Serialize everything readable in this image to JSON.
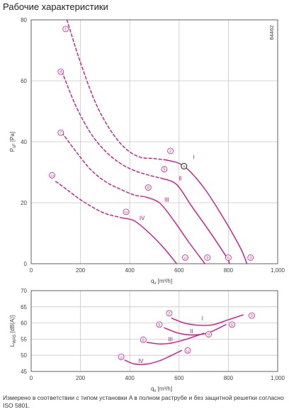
{
  "page_title": "Рабочие характеристики",
  "footnote": "Измерено в соответствии с типом установки A в полном раструбе и без защитной решетки согласно ISO 5801.",
  "colors": {
    "curve": "#d4148c",
    "grid": "#c8c8c8",
    "axis": "#555555",
    "text": "#444444"
  },
  "chart_data": [
    {
      "type": "line",
      "id": "pressure",
      "doc_code": "84462",
      "xlabel": "q",
      "xlabel_sub": "v",
      "xlabel_unit": "[m³/h]",
      "ylabel": "P",
      "ylabel_sub": "sF",
      "ylabel_unit": "[Pa]",
      "xlim": [
        0,
        1000
      ],
      "ylim": [
        0,
        80
      ],
      "x_ticks": [
        0,
        200,
        400,
        600,
        800,
        1000
      ],
      "x_tick_labels": [
        "0",
        "200",
        "400",
        "600",
        "800",
        "1,000"
      ],
      "y_ticks": [
        0,
        20,
        40,
        60,
        80
      ],
      "y_tick_labels": [
        "0",
        "20",
        "40",
        "60",
        "80"
      ],
      "grid": true,
      "series": [
        {
          "name": "I",
          "style": "dashed",
          "values": [
            [
              145,
              80
            ],
            [
              200,
              66
            ],
            [
              260,
              53
            ],
            [
              320,
              44
            ],
            [
              380,
              38
            ],
            [
              440,
              35
            ],
            [
              500,
              34.5
            ],
            [
              550,
              34
            ]
          ]
        },
        {
          "name": "I",
          "style": "solid",
          "values": [
            [
              550,
              34
            ],
            [
              620,
              32
            ],
            [
              700,
              25
            ],
            [
              780,
              15
            ],
            [
              850,
              5
            ],
            [
              875,
              0
            ]
          ]
        },
        {
          "name": "II",
          "style": "dashed",
          "values": [
            [
              125,
              63
            ],
            [
              180,
              52
            ],
            [
              240,
              43
            ],
            [
              300,
              37
            ],
            [
              360,
              33
            ],
            [
              420,
              30.5
            ],
            [
              480,
              29
            ],
            [
              530,
              28
            ]
          ]
        },
        {
          "name": "II",
          "style": "solid",
          "values": [
            [
              530,
              28
            ],
            [
              590,
              26
            ],
            [
              650,
              19
            ],
            [
              720,
              11
            ],
            [
              790,
              2.5
            ],
            [
              805,
              0
            ]
          ]
        },
        {
          "name": "III",
          "style": "dashed",
          "values": [
            [
              125,
              43
            ],
            [
              180,
              37
            ],
            [
              240,
              31
            ],
            [
              300,
              27
            ],
            [
              360,
              24.5
            ],
            [
              420,
              22.5
            ],
            [
              460,
              22
            ]
          ]
        },
        {
          "name": "III",
          "style": "solid",
          "values": [
            [
              460,
              22
            ],
            [
              520,
              20
            ],
            [
              580,
              14
            ],
            [
              640,
              7
            ],
            [
              705,
              0
            ]
          ]
        },
        {
          "name": "IV",
          "style": "dashed",
          "values": [
            [
              100,
              27
            ],
            [
              150,
              24
            ],
            [
              200,
              21
            ],
            [
              250,
              18.5
            ],
            [
              300,
              16.5
            ],
            [
              370,
              15
            ]
          ]
        },
        {
          "name": "IV",
          "style": "solid",
          "values": [
            [
              370,
              15
            ],
            [
              420,
              14
            ],
            [
              480,
              10
            ],
            [
              540,
              5
            ],
            [
              590,
              0
            ]
          ]
        }
      ],
      "markers": [
        {
          "label": "1",
          "x": 140,
          "y": 77,
          "style": "circle"
        },
        {
          "label": "4",
          "x": 120,
          "y": 63,
          "style": "circle"
        },
        {
          "label": "7",
          "x": 120,
          "y": 43,
          "style": "circle"
        },
        {
          "label": "10",
          "x": 85,
          "y": 29,
          "style": "circle"
        },
        {
          "label": "2",
          "x": 565,
          "y": 37,
          "style": "circle"
        },
        {
          "label": "5",
          "x": 540,
          "y": 31,
          "style": "circle"
        },
        {
          "label": "8",
          "x": 475,
          "y": 25,
          "style": "circle"
        },
        {
          "label": "11",
          "x": 385,
          "y": 17,
          "style": "circle"
        },
        {
          "label": "n",
          "x": 620,
          "y": 32,
          "style": "circle-dark"
        },
        {
          "label": "12",
          "x": 625,
          "y": 2,
          "style": "circle"
        },
        {
          "label": "9",
          "x": 715,
          "y": 2,
          "style": "circle"
        },
        {
          "label": "6",
          "x": 800,
          "y": 2,
          "style": "circle"
        },
        {
          "label": "3",
          "x": 890,
          "y": 2,
          "style": "circle"
        }
      ],
      "annotations": [
        {
          "text": "I",
          "x": 660,
          "y": 35
        },
        {
          "text": "II",
          "x": 605,
          "y": 28
        },
        {
          "text": "III",
          "x": 550,
          "y": 21
        },
        {
          "text": "IV",
          "x": 450,
          "y": 15
        }
      ]
    },
    {
      "type": "line",
      "id": "noise",
      "xlabel": "q",
      "xlabel_sub": "v",
      "xlabel_unit": "[m³/h]",
      "ylabel": "L",
      "ylabel_sub": "WA5",
      "ylabel_unit": "[dB(A)]",
      "xlim": [
        0,
        1000
      ],
      "ylim": [
        45,
        70
      ],
      "x_ticks": [
        0,
        200,
        400,
        600,
        800,
        1000
      ],
      "x_tick_labels": [
        "0",
        "200",
        "400",
        "600",
        "800",
        "1,000"
      ],
      "y_ticks": [
        45,
        50,
        55,
        60,
        65,
        70
      ],
      "y_tick_labels": [
        "45",
        "50",
        "55",
        "60",
        "65",
        "70"
      ],
      "grid": true,
      "series": [
        {
          "name": "I",
          "style": "solid",
          "values": [
            [
              570,
              61.5
            ],
            [
              620,
              60
            ],
            [
              680,
              59.3
            ],
            [
              740,
              59.5
            ],
            [
              800,
              61
            ],
            [
              860,
              62.5
            ]
          ]
        },
        {
          "name": "II",
          "style": "solid",
          "values": [
            [
              540,
              58.5
            ],
            [
              600,
              56.8
            ],
            [
              660,
              56.3
            ],
            [
              720,
              57
            ],
            [
              790,
              59.5
            ]
          ]
        },
        {
          "name": "III",
          "style": "solid",
          "values": [
            [
              470,
              54
            ],
            [
              520,
              53.5
            ],
            [
              570,
              53.8
            ],
            [
              630,
              55
            ],
            [
              700,
              56.8
            ]
          ]
        },
        {
          "name": "IV",
          "style": "solid",
          "values": [
            [
              380,
              48.5
            ],
            [
              420,
              47.3
            ],
            [
              470,
              47.3
            ],
            [
              520,
              48.3
            ],
            [
              570,
              50
            ],
            [
              610,
              51.5
            ]
          ]
        }
      ],
      "markers": [
        {
          "label": "2",
          "x": 560,
          "y": 63,
          "style": "circle"
        },
        {
          "label": "5",
          "x": 520,
          "y": 59.5,
          "style": "circle"
        },
        {
          "label": "8",
          "x": 455,
          "y": 54.8,
          "style": "circle"
        },
        {
          "label": "11",
          "x": 365,
          "y": 49.5,
          "style": "circle"
        },
        {
          "label": "3",
          "x": 895,
          "y": 62.3,
          "style": "circle"
        },
        {
          "label": "6",
          "x": 815,
          "y": 59.5,
          "style": "circle"
        },
        {
          "label": "9",
          "x": 720,
          "y": 56.5,
          "style": "circle"
        },
        {
          "label": "12",
          "x": 635,
          "y": 51.5,
          "style": "circle"
        }
      ],
      "annotations": [
        {
          "text": "I",
          "x": 695,
          "y": 61.5
        },
        {
          "text": "II",
          "x": 650,
          "y": 57.5
        },
        {
          "text": "III",
          "x": 565,
          "y": 55
        },
        {
          "text": "IV",
          "x": 445,
          "y": 48.3
        }
      ]
    }
  ]
}
